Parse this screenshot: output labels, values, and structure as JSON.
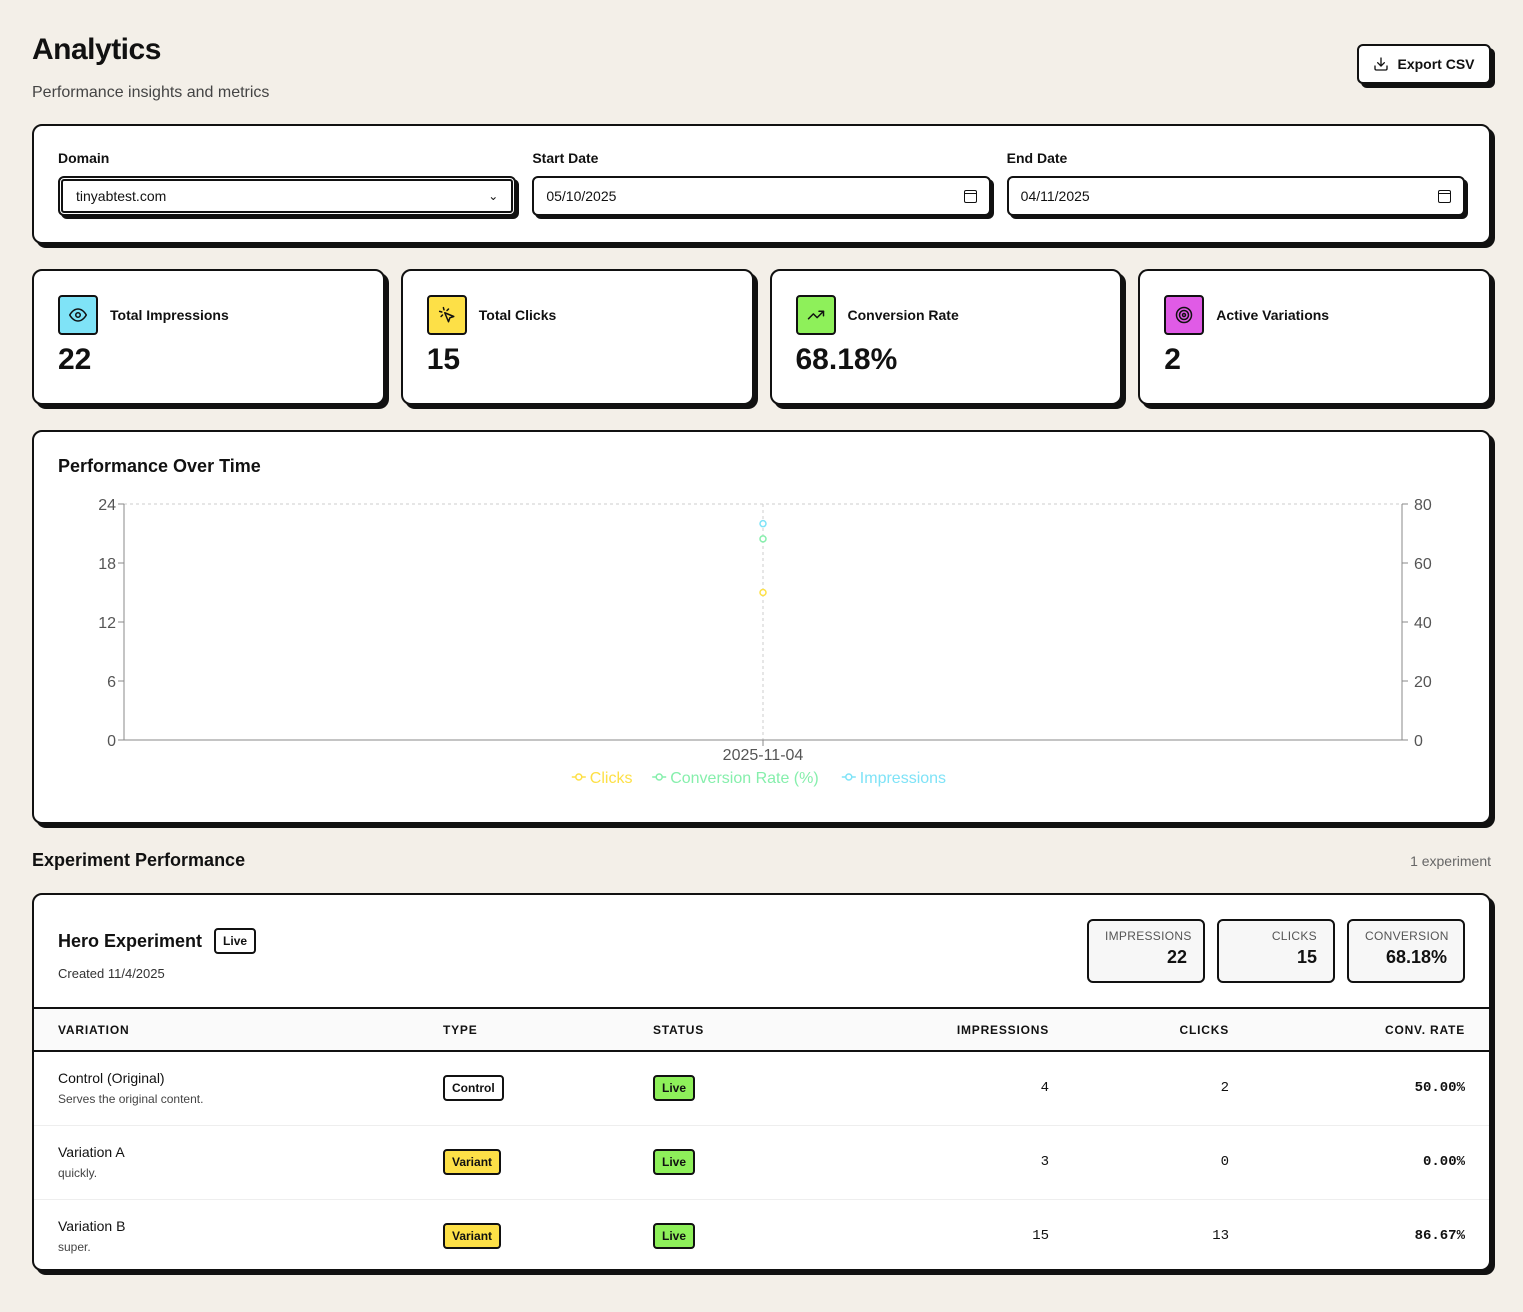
{
  "header": {
    "title": "Analytics",
    "subtitle": "Performance insights and metrics",
    "export_label": "Export CSV"
  },
  "filters": {
    "domain_label": "Domain",
    "domain_value": "tinyabtest.com",
    "start_label": "Start Date",
    "start_value": "05/10/2025",
    "end_label": "End Date",
    "end_value": "04/11/2025"
  },
  "stats": [
    {
      "label": "Total Impressions",
      "value": "22",
      "icon": "eye-icon",
      "color": "#7fe3f7"
    },
    {
      "label": "Total Clicks",
      "value": "15",
      "icon": "cursor-click-icon",
      "color": "#fde047"
    },
    {
      "label": "Conversion Rate",
      "value": "68.18%",
      "icon": "trending-up-icon",
      "color": "#8ef05a"
    },
    {
      "label": "Active Variations",
      "value": "2",
      "icon": "target-icon",
      "color": "#e05be6"
    }
  ],
  "chart": {
    "title": "Performance Over Time"
  },
  "chart_data": {
    "type": "line",
    "x": [
      "2025-11-04"
    ],
    "series": [
      {
        "name": "Clicks",
        "values": [
          15
        ],
        "axis": "left",
        "color": "#fde047"
      },
      {
        "name": "Conversion Rate (%)",
        "values": [
          68.18
        ],
        "axis": "right",
        "color": "#86efac"
      },
      {
        "name": "Impressions",
        "values": [
          22
        ],
        "axis": "left",
        "color": "#7fe3f7"
      }
    ],
    "y_left": {
      "lim": [
        0,
        24
      ],
      "ticks": [
        0,
        6,
        12,
        18,
        24
      ]
    },
    "y_right": {
      "lim": [
        0,
        80
      ],
      "ticks": [
        0,
        20,
        40,
        60,
        80
      ]
    },
    "grid": true,
    "legend": "bottom"
  },
  "experiments_section": {
    "title": "Experiment Performance",
    "count": "1 experiment"
  },
  "experiment": {
    "name": "Hero Experiment",
    "status": "Live",
    "created": "Created 11/4/2025",
    "mini_stats": [
      {
        "label": "IMPRESSIONS",
        "value": "22"
      },
      {
        "label": "CLICKS",
        "value": "15"
      },
      {
        "label": "CONVERSION",
        "value": "68.18%"
      }
    ],
    "columns": [
      "VARIATION",
      "TYPE",
      "STATUS",
      "IMPRESSIONS",
      "CLICKS",
      "CONV. RATE"
    ],
    "rows": [
      {
        "name": "Control (Original)",
        "desc": "Serves the original content.",
        "type": "Control",
        "status": "Live",
        "impressions": "4",
        "clicks": "2",
        "rate": "50.00%"
      },
      {
        "name": "Variation A",
        "desc": "quickly.",
        "type": "Variant",
        "status": "Live",
        "impressions": "3",
        "clicks": "0",
        "rate": "0.00%"
      },
      {
        "name": "Variation B",
        "desc": "super.",
        "type": "Variant",
        "status": "Live",
        "impressions": "15",
        "clicks": "13",
        "rate": "86.67%"
      }
    ]
  }
}
